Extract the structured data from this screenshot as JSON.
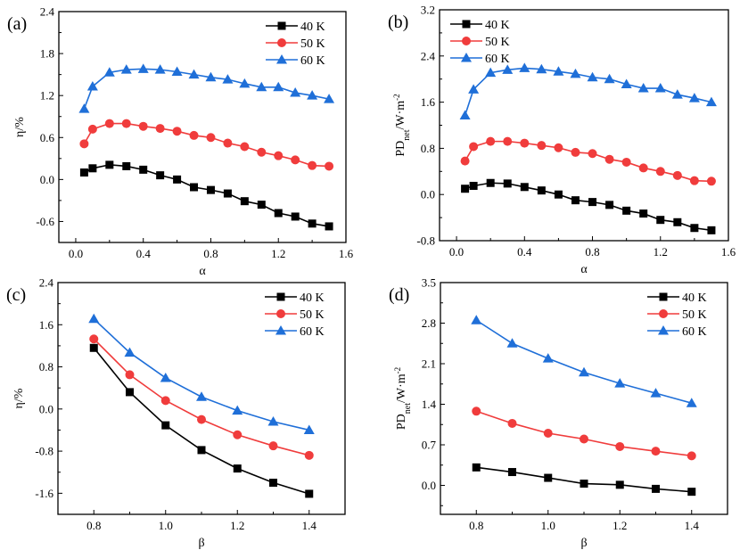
{
  "chart_data": [
    {
      "panel_label": "(a)",
      "type": "line",
      "xlabel": "α",
      "ylabel": {
        "main": "η/%",
        "sub": "",
        "rest": "",
        "sup": ""
      },
      "xlim": [
        -0.1,
        1.6
      ],
      "ylim": [
        -0.9,
        2.4
      ],
      "xticks": [
        0.0,
        0.4,
        0.8,
        1.2,
        1.6
      ],
      "yticks": [
        -0.6,
        0.0,
        0.6,
        1.2,
        1.8,
        2.4
      ],
      "legend": "top-right",
      "x": [
        0.05,
        0.1,
        0.2,
        0.3,
        0.4,
        0.5,
        0.6,
        0.7,
        0.8,
        0.9,
        1.0,
        1.1,
        1.2,
        1.3,
        1.4,
        1.5
      ],
      "series": [
        {
          "name": "40 K",
          "marker": "square",
          "color": "#000000",
          "values": [
            0.1,
            0.16,
            0.21,
            0.19,
            0.14,
            0.06,
            0.0,
            -0.11,
            -0.15,
            -0.2,
            -0.31,
            -0.36,
            -0.48,
            -0.53,
            -0.63,
            -0.67
          ]
        },
        {
          "name": "50 K",
          "marker": "circle",
          "color": "#f03c3c",
          "values": [
            0.51,
            0.72,
            0.8,
            0.8,
            0.76,
            0.73,
            0.69,
            0.63,
            0.6,
            0.52,
            0.47,
            0.39,
            0.34,
            0.28,
            0.2,
            0.19
          ]
        },
        {
          "name": "60 K",
          "marker": "triangle",
          "color": "#1f6fd8",
          "values": [
            1.01,
            1.33,
            1.53,
            1.57,
            1.58,
            1.57,
            1.54,
            1.5,
            1.46,
            1.43,
            1.37,
            1.32,
            1.32,
            1.24,
            1.2,
            1.15
          ]
        }
      ]
    },
    {
      "panel_label": "(b)",
      "type": "line",
      "xlabel": "α",
      "ylabel": {
        "main": "PD",
        "sub": "net",
        "rest": "/W·m",
        "sup": "-2"
      },
      "xlim": [
        -0.1,
        1.6
      ],
      "ylim": [
        -0.8,
        3.2
      ],
      "xticks": [
        0.0,
        0.4,
        0.8,
        1.2,
        1.6
      ],
      "yticks": [
        -0.8,
        0.0,
        0.8,
        1.6,
        2.4,
        3.2
      ],
      "legend": "top-left",
      "x": [
        0.05,
        0.1,
        0.2,
        0.3,
        0.4,
        0.5,
        0.6,
        0.7,
        0.8,
        0.9,
        1.0,
        1.1,
        1.2,
        1.3,
        1.4,
        1.5
      ],
      "series": [
        {
          "name": "40 K",
          "marker": "square",
          "color": "#000000",
          "values": [
            0.1,
            0.15,
            0.2,
            0.19,
            0.13,
            0.07,
            0.0,
            -0.1,
            -0.13,
            -0.18,
            -0.28,
            -0.33,
            -0.44,
            -0.48,
            -0.58,
            -0.62
          ]
        },
        {
          "name": "50 K",
          "marker": "circle",
          "color": "#f03c3c",
          "values": [
            0.58,
            0.83,
            0.92,
            0.92,
            0.89,
            0.85,
            0.81,
            0.73,
            0.71,
            0.61,
            0.56,
            0.46,
            0.4,
            0.33,
            0.24,
            0.23
          ]
        },
        {
          "name": "60 K",
          "marker": "triangle",
          "color": "#1f6fd8",
          "values": [
            1.37,
            1.82,
            2.11,
            2.16,
            2.19,
            2.17,
            2.13,
            2.09,
            2.03,
            2.0,
            1.91,
            1.84,
            1.84,
            1.73,
            1.67,
            1.6
          ]
        }
      ]
    },
    {
      "panel_label": "(c)",
      "type": "line",
      "xlabel": "β",
      "ylabel": {
        "main": "η/%",
        "sub": "",
        "rest": "",
        "sup": ""
      },
      "xlim": [
        0.7,
        1.5
      ],
      "ylim": [
        -2.0,
        2.4
      ],
      "xticks": [
        0.8,
        1.0,
        1.2,
        1.4
      ],
      "yticks": [
        -1.6,
        -0.8,
        0.0,
        0.8,
        1.6,
        2.4
      ],
      "legend": "top-right",
      "x": [
        0.8,
        0.9,
        1.0,
        1.1,
        1.2,
        1.3,
        1.4
      ],
      "series": [
        {
          "name": "40 K",
          "marker": "square",
          "color": "#000000",
          "values": [
            1.16,
            0.32,
            -0.31,
            -0.78,
            -1.13,
            -1.4,
            -1.61
          ]
        },
        {
          "name": "50 K",
          "marker": "circle",
          "color": "#f03c3c",
          "values": [
            1.33,
            0.65,
            0.16,
            -0.2,
            -0.49,
            -0.7,
            -0.88
          ]
        },
        {
          "name": "60 K",
          "marker": "triangle",
          "color": "#1f6fd8",
          "values": [
            1.71,
            1.07,
            0.59,
            0.23,
            -0.03,
            -0.24,
            -0.4
          ]
        }
      ]
    },
    {
      "panel_label": "(d)",
      "type": "line",
      "xlabel": "β",
      "ylabel": {
        "main": "PD",
        "sub": "net",
        "rest": "/W·m",
        "sup": "-2"
      },
      "xlim": [
        0.7,
        1.5
      ],
      "ylim": [
        -0.5,
        3.5
      ],
      "xticks": [
        0.8,
        1.0,
        1.2,
        1.4
      ],
      "yticks": [
        0.0,
        0.7,
        1.4,
        2.1,
        2.8,
        3.5
      ],
      "legend": "top-right",
      "x": [
        0.8,
        0.9,
        1.0,
        1.1,
        1.2,
        1.3,
        1.4
      ],
      "series": [
        {
          "name": "40 K",
          "marker": "square",
          "color": "#000000",
          "values": [
            0.31,
            0.23,
            0.13,
            0.03,
            0.01,
            -0.06,
            -0.11
          ]
        },
        {
          "name": "50 K",
          "marker": "circle",
          "color": "#f03c3c",
          "values": [
            1.28,
            1.07,
            0.9,
            0.8,
            0.67,
            0.59,
            0.51
          ]
        },
        {
          "name": "60 K",
          "marker": "triangle",
          "color": "#1f6fd8",
          "values": [
            2.85,
            2.45,
            2.19,
            1.95,
            1.76,
            1.59,
            1.42
          ]
        }
      ]
    }
  ]
}
